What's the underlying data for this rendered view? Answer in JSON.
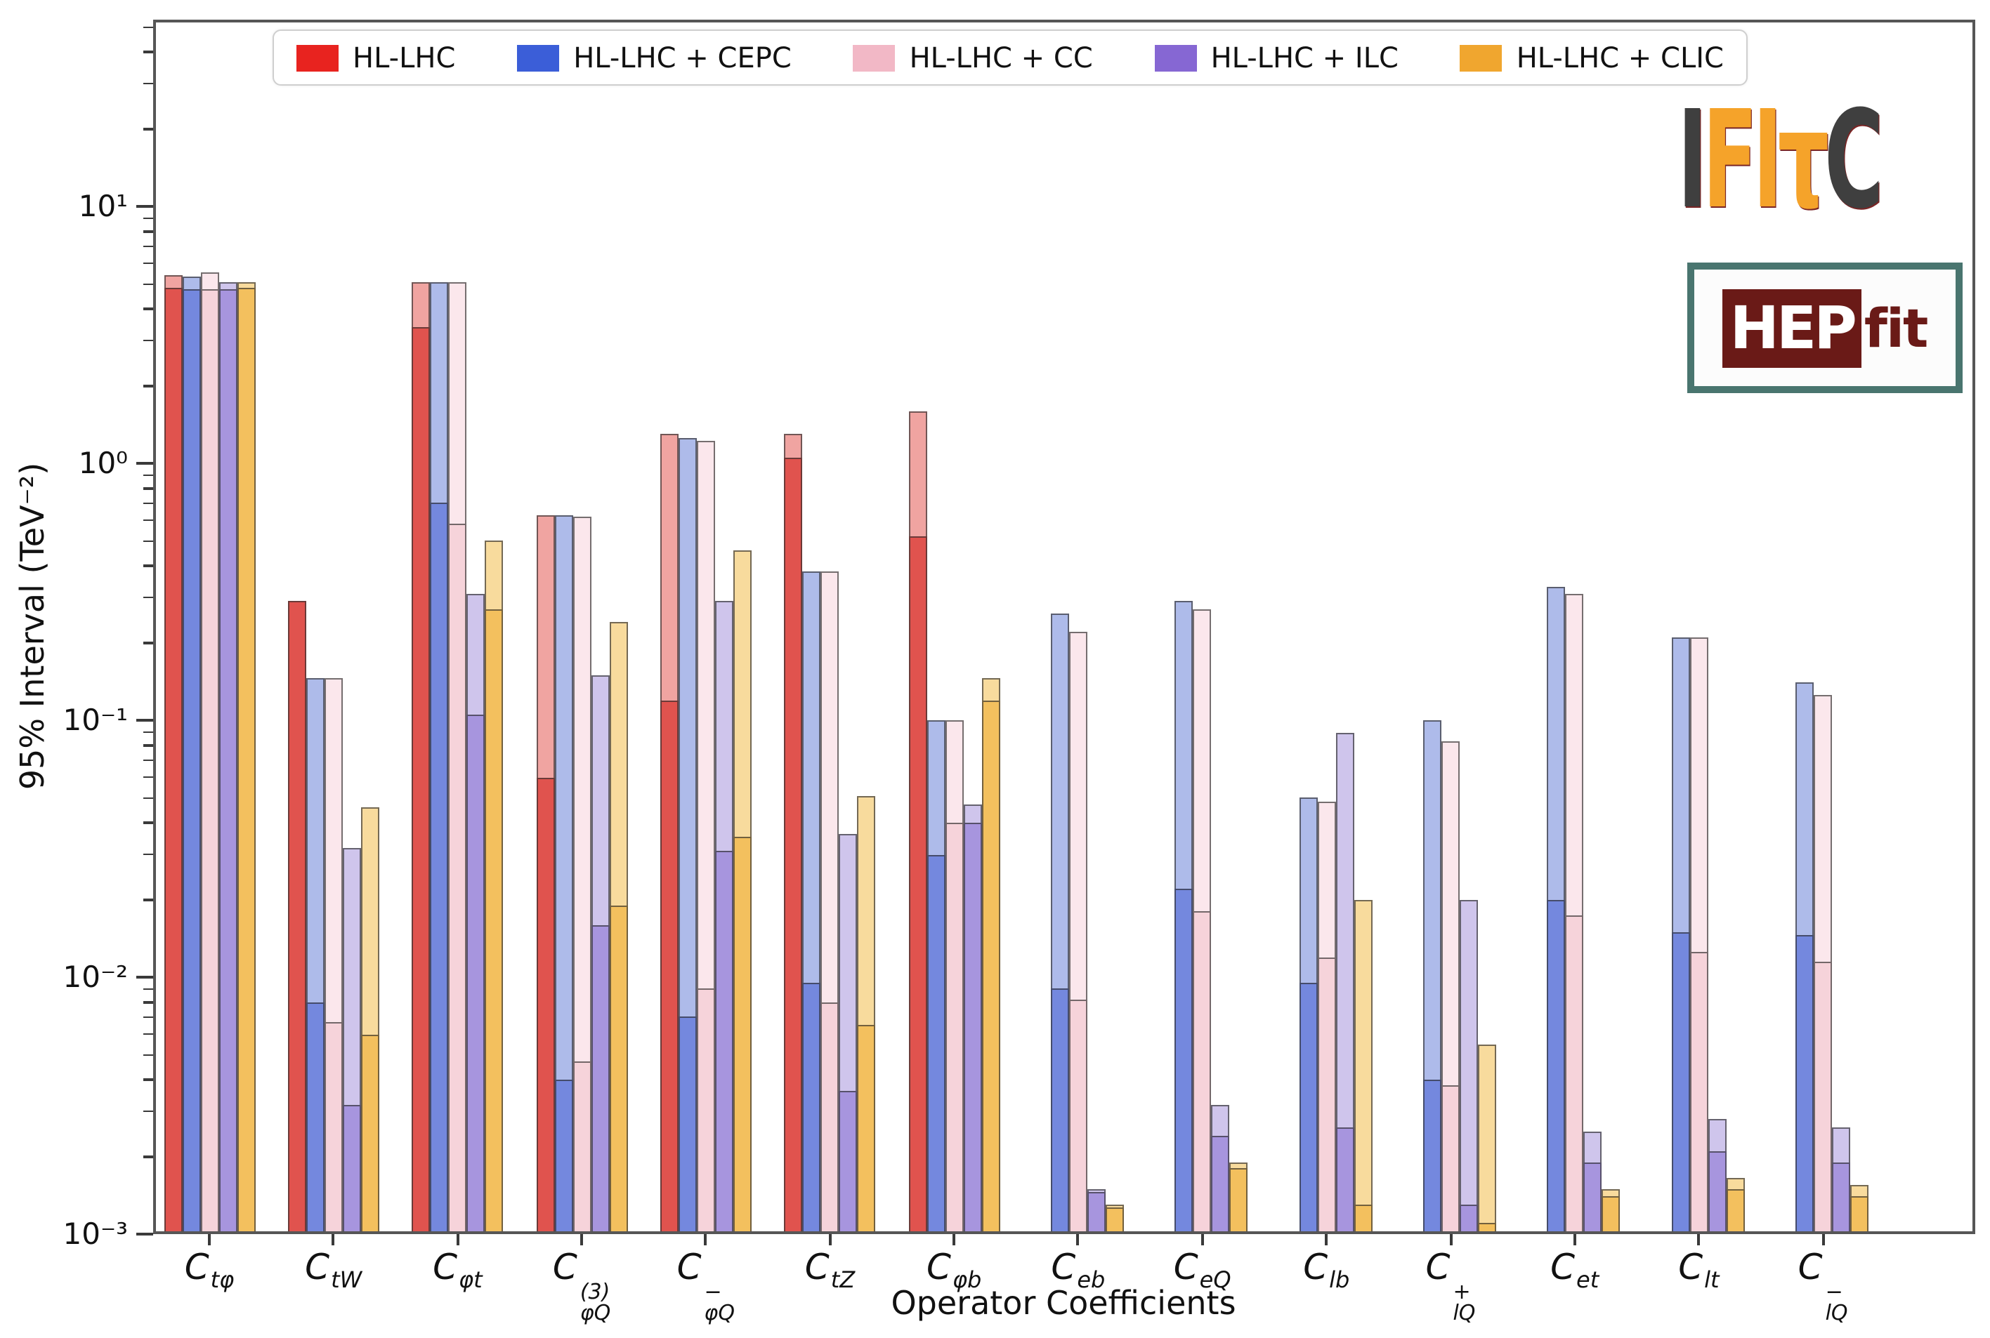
{
  "legend": {
    "items": [
      {
        "label": "HL-LHC",
        "color": "#e8231f"
      },
      {
        "label": "HL-LHC + CEPC",
        "color": "#3b5ed8"
      },
      {
        "label": "HL-LHC + CC",
        "color": "#f2b8c6"
      },
      {
        "label": "HL-LHC + ILC",
        "color": "#8667d3"
      },
      {
        "label": "HL-LHC + CLIC",
        "color": "#f0a62f"
      }
    ]
  },
  "axes": {
    "ylabel": "95% Interval (TeV⁻²)",
    "xlabel": "Operator Coefficients",
    "ytick_labels": [
      "10¹",
      "10⁰",
      "10⁻¹",
      "10⁻²",
      "10⁻³"
    ]
  },
  "logos": {
    "fitter": {
      "i": "I",
      "fi": "FI",
      "tau": "τ",
      "c": "C"
    },
    "hepfit": {
      "hep": "HEP",
      "fit": "fit"
    }
  },
  "chart_data": {
    "type": "bar",
    "title": "",
    "xlabel": "Operator Coefficients",
    "ylabel": "95% Interval (TeV^-2)",
    "yscale": "log",
    "ylim": [
      0.001,
      53
    ],
    "grid": false,
    "legend_position": "top",
    "categories": [
      "Ctφ",
      "CtW",
      "Cφt",
      "CφQ(3)",
      "CφQ−",
      "CtZ",
      "Cφb",
      "Ceb",
      "CeQ",
      "Clb",
      "ClQ+",
      "Cet",
      "Clt",
      "ClQ−"
    ],
    "category_labels": [
      {
        "base": "C",
        "sub": "tφ",
        "sup": ""
      },
      {
        "base": "C",
        "sub": "tW",
        "sup": ""
      },
      {
        "base": "C",
        "sub": "φt",
        "sup": ""
      },
      {
        "base": "C",
        "sub": "φQ",
        "sup": "(3)"
      },
      {
        "base": "C",
        "sub": "φQ",
        "sup": "−"
      },
      {
        "base": "C",
        "sub": "tZ",
        "sup": ""
      },
      {
        "base": "C",
        "sub": "φb",
        "sup": ""
      },
      {
        "base": "C",
        "sub": "eb",
        "sup": ""
      },
      {
        "base": "C",
        "sub": "eQ",
        "sup": ""
      },
      {
        "base": "C",
        "sub": "lb",
        "sup": ""
      },
      {
        "base": "C",
        "sub": "lQ",
        "sup": "+"
      },
      {
        "base": "C",
        "sub": "et",
        "sup": ""
      },
      {
        "base": "C",
        "sub": "lt",
        "sup": ""
      },
      {
        "base": "C",
        "sub": "lQ",
        "sup": "−"
      }
    ],
    "series": [
      {
        "name": "HL-LHC",
        "legend_color": "#e8231f",
        "solid_color": "#e0534e",
        "light_color": "#f0a4a1",
        "values_solid": [
          4.8,
          0.29,
          3.4,
          0.06,
          0.12,
          1.05,
          0.52,
          null,
          null,
          null,
          null,
          null,
          null,
          null
        ],
        "values_light": [
          5.4,
          0.29,
          5.1,
          0.63,
          1.3,
          1.3,
          1.6,
          null,
          null,
          null,
          null,
          null,
          null,
          null
        ]
      },
      {
        "name": "HL-LHC + CEPC",
        "legend_color": "#3b5ed8",
        "solid_color": "#7488de",
        "light_color": "#aebbea",
        "values_solid": [
          4.75,
          0.008,
          0.7,
          0.004,
          0.007,
          0.0095,
          0.03,
          0.009,
          0.022,
          0.0095,
          0.004,
          0.02,
          0.015,
          0.0145
        ],
        "values_light": [
          5.35,
          0.145,
          5.1,
          0.63,
          1.25,
          0.38,
          0.1,
          0.26,
          0.29,
          0.05,
          0.1,
          0.33,
          0.21,
          0.14
        ]
      },
      {
        "name": "HL-LHC + CC",
        "legend_color": "#f2b8c6",
        "solid_color": "#f6d3da",
        "light_color": "#fbe7ec",
        "values_solid": [
          4.75,
          0.0067,
          0.58,
          0.0047,
          0.009,
          0.008,
          0.04,
          0.0082,
          0.018,
          0.012,
          0.0038,
          0.0175,
          0.0125,
          0.0115
        ],
        "values_light": [
          5.55,
          0.145,
          5.05,
          0.62,
          1.22,
          0.38,
          0.1,
          0.22,
          0.27,
          0.048,
          0.083,
          0.31,
          0.21,
          0.125
        ]
      },
      {
        "name": "HL-LHC + ILC",
        "legend_color": "#8667d3",
        "solid_color": "#a795de",
        "light_color": "#cfc5ec",
        "values_solid": [
          4.75,
          0.0032,
          0.105,
          0.016,
          0.031,
          0.0036,
          0.04,
          0.00145,
          0.0024,
          0.0026,
          0.0013,
          0.0019,
          0.0021,
          0.0019
        ],
        "values_light": [
          5.05,
          0.032,
          0.31,
          0.15,
          0.29,
          0.036,
          0.047,
          0.0015,
          0.0032,
          0.089,
          0.02,
          0.0025,
          0.0028,
          0.0026
        ]
      },
      {
        "name": "HL-LHC + CLIC",
        "legend_color": "#f0a62f",
        "solid_color": "#f3c05e",
        "light_color": "#f8db9d",
        "values_solid": [
          4.8,
          0.006,
          0.27,
          0.019,
          0.035,
          0.0065,
          0.12,
          0.00127,
          0.0018,
          0.0013,
          0.0011,
          0.0014,
          0.0015,
          0.0014
        ],
        "values_light": [
          5.1,
          0.046,
          0.5,
          0.24,
          0.46,
          0.051,
          0.145,
          0.0013,
          0.0019,
          0.02,
          0.0055,
          0.0015,
          0.00165,
          0.00155
        ]
      }
    ]
  }
}
